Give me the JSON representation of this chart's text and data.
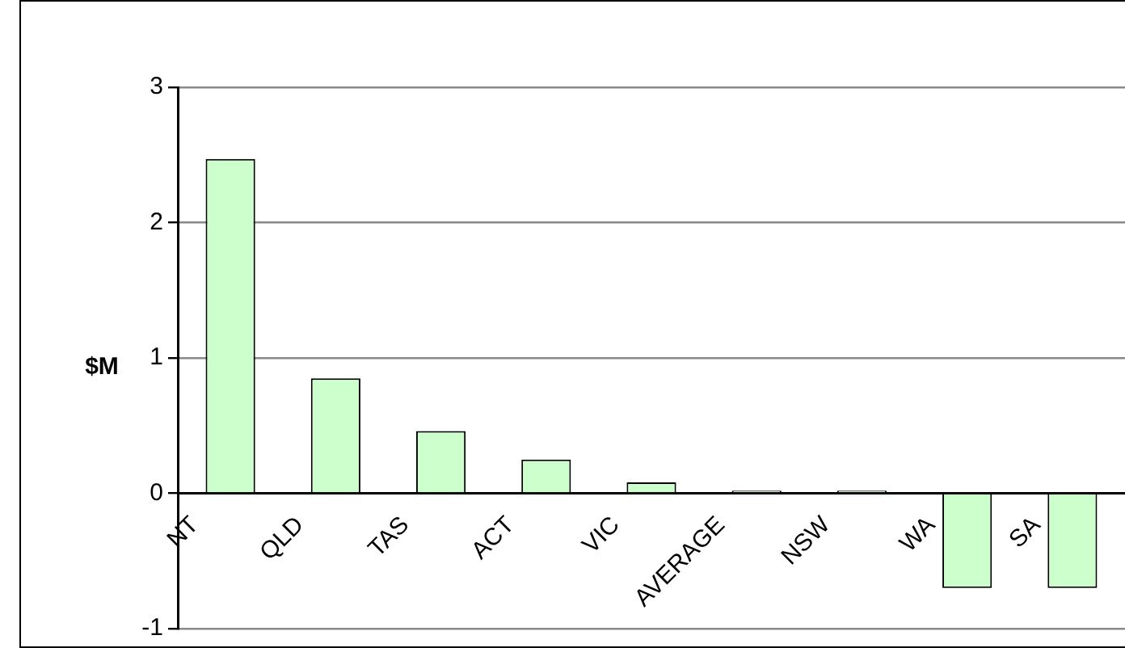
{
  "chart_data": {
    "type": "bar",
    "ylabel": "$M",
    "categories": [
      "NT",
      "QLD",
      "TAS",
      "ACT",
      "VIC",
      "AVERAGE",
      "NSW",
      "WA",
      "SA"
    ],
    "values": [
      2.47,
      0.85,
      0.46,
      0.25,
      0.08,
      0.02,
      0.02,
      -0.7,
      -0.7
    ],
    "color": "#ccffcc",
    "ylim": [
      -1,
      3
    ],
    "yticks": [
      -1,
      0,
      1,
      2,
      3
    ],
    "grid": "y",
    "legend": false
  }
}
